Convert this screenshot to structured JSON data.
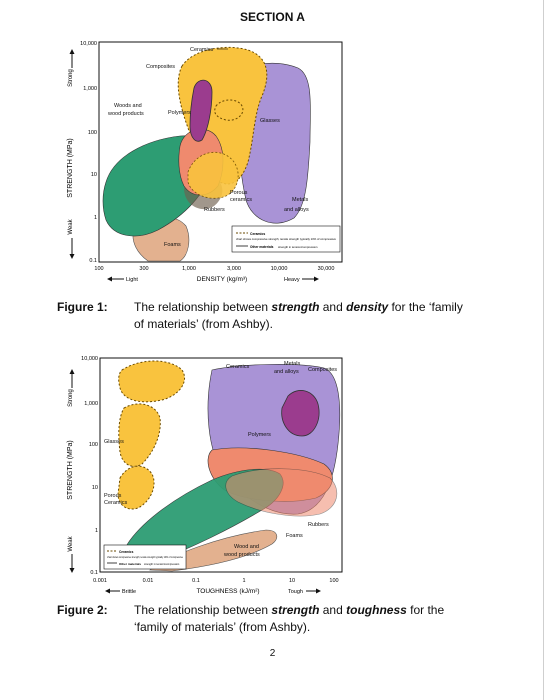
{
  "section_title": "SECTION A",
  "figure1": {
    "y_axis": {
      "label": "STRENGTH (MPa)",
      "strong": "Strong",
      "weak": "Weak",
      "ticks": [
        "10,000",
        "1,000",
        "100",
        "10",
        "1",
        "0.1"
      ]
    },
    "x_axis": {
      "label": "DENSITY (kg/m³)",
      "light": "Light",
      "heavy": "Heavy",
      "ticks": [
        "100",
        "300",
        "1,000",
        "3,000",
        "10,000",
        "30,000"
      ]
    },
    "regions": {
      "ceramics": "Ceramics",
      "composites": "Composites",
      "woods_line1": "Woods and",
      "woods_line2": "wood products",
      "polymers": "Polymers",
      "glasses": "Glasses",
      "porous_line1": "Porous",
      "porous_line2": "ceramics",
      "rubbers": "Rubbers",
      "metals_line1": "Metals",
      "metals_line2": "and alloys",
      "foams": "Foams"
    },
    "legend": {
      "ceramics_label": "Ceramics",
      "ceramics_text": "chart shows compressive strength; tensile strength typically 10% of compressive",
      "other_label": "Other materials",
      "other_text": "strength in tension/compression"
    },
    "colors": {
      "ceramics": "#f9c33e",
      "metals": "#a993d6",
      "woods": "#2d9d73",
      "polymers": "#ef8a6e",
      "foams": "#e3b18f",
      "composites": "#9b3c8e"
    }
  },
  "figure1_caption": {
    "label": "Figure 1:",
    "text_before_strength": "The relationship between ",
    "strength": "strength",
    "and": " and ",
    "density": "density",
    "text_after": " for the ‘family of materials’ (from Ashby)."
  },
  "figure2": {
    "y_axis": {
      "label": "STRENGTH (MPa)",
      "strong": "Strong",
      "weak": "Weak",
      "ticks": [
        "10,000",
        "1,000",
        "100",
        "10",
        "1",
        "0.1"
      ]
    },
    "x_axis": {
      "label": "TOUGHNESS (kJ/m²)",
      "brittle": "Brittle",
      "tough": "Tough",
      "ticks": [
        "0.001",
        "0.01",
        "0.1",
        "1",
        "10",
        "100"
      ]
    },
    "regions": {
      "ceramics": "Ceramics",
      "metals_line1": "Metals",
      "metals_line2": "and alloys",
      "composites": "Composites",
      "glasses": "Glasses",
      "polymers": "Polymers",
      "porous_line1": "Porous",
      "porous_line2": "Ceramics",
      "rubbers": "Rubbers",
      "foams": "Foams",
      "woods_line1": "Wood and",
      "woods_line2": "wood products"
    },
    "legend": {
      "ceramics_label": "Ceramics",
      "ceramics_text": "chart shows compressive strength; tensile strength typically 10% of compressive",
      "other_label": "Other materials",
      "other_text": "strength in tension/compression"
    }
  },
  "figure2_caption": {
    "label": "Figure 2:",
    "text_before_strength": "The relationship between ",
    "strength": "strength",
    "and": " and ",
    "toughness": "toughness",
    "text_after": " for the ‘family of materials’ (from Ashby)."
  },
  "page_number": "2"
}
